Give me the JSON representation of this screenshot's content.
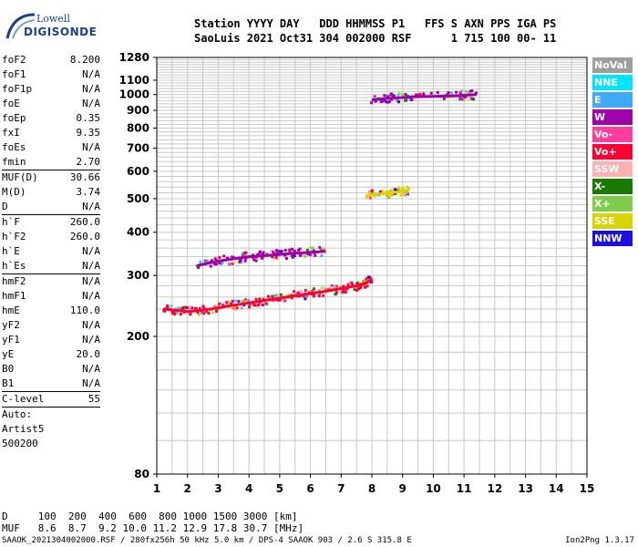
{
  "logo": {
    "line1": "Lowell",
    "line2": "DIGISONDE"
  },
  "header": {
    "line1": "Station YYYY DAY   DDD HHMMSS P1   FFS S AXN PPS IGA PS",
    "line2": "SaoLuis 2021 Oct31 304 002000 RSF      1 715 100 00- 11"
  },
  "params": [
    {
      "name": "foF2",
      "value": "8.200"
    },
    {
      "name": "foF1",
      "value": "N/A"
    },
    {
      "name": "foF1p",
      "value": "N/A"
    },
    {
      "name": "foE",
      "value": "N/A"
    },
    {
      "name": "foEp",
      "value": "0.35"
    },
    {
      "name": "fxI",
      "value": "9.35"
    },
    {
      "name": "foEs",
      "value": "N/A"
    },
    {
      "name": "fmin",
      "value": "2.70"
    },
    {
      "sep": true
    },
    {
      "name": "MUF(D)",
      "value": "30.66"
    },
    {
      "name": "M(D)",
      "value": "3.74"
    },
    {
      "name": "D",
      "value": "N/A"
    },
    {
      "sep": true
    },
    {
      "name": "h`F",
      "value": "260.0"
    },
    {
      "name": "h`F2",
      "value": "260.0"
    },
    {
      "name": "h`E",
      "value": "N/A"
    },
    {
      "name": "h`Es",
      "value": "N/A"
    },
    {
      "sep": true
    },
    {
      "name": "hmF2",
      "value": "N/A"
    },
    {
      "name": "hmF1",
      "value": "N/A"
    },
    {
      "name": "hmE",
      "value": "110.0"
    },
    {
      "name": "yF2",
      "value": "N/A"
    },
    {
      "name": "yF1",
      "value": "N/A"
    },
    {
      "name": "yE",
      "value": "20.0"
    },
    {
      "name": "B0",
      "value": "N/A"
    },
    {
      "name": "B1",
      "value": "N/A"
    },
    {
      "sep": true
    },
    {
      "name": "C-level",
      "value": "55"
    },
    {
      "sep": true
    },
    {
      "text": "Auto:"
    },
    {
      "text": "Artist5"
    },
    {
      "text": "500200"
    }
  ],
  "legend": [
    {
      "label": "NoVal",
      "color": "#9e9e9e"
    },
    {
      "label": "NNE",
      "color": "#00e5ff"
    },
    {
      "label": "E",
      "color": "#3fa9f5"
    },
    {
      "label": "W",
      "color": "#a000a8"
    },
    {
      "label": "Vo-",
      "color": "#ff3ca0"
    },
    {
      "label": "Vo+",
      "color": "#ff0033"
    },
    {
      "label": "SSW",
      "color": "#ffb0b0"
    },
    {
      "label": "X-",
      "color": "#1a7a00"
    },
    {
      "label": "X+",
      "color": "#7ecc4a"
    },
    {
      "label": "SSE",
      "color": "#d8d400"
    },
    {
      "label": "NNW",
      "color": "#1a10e0"
    }
  ],
  "footer": {
    "d_line": "D     100  200  400  600  800 1000 1500 3000 [km]",
    "muf_line": "MUF   8.6  8.7  9.2 10.0 11.2 12.9 17.8 30.7 [MHz]",
    "file_line": "SAAOK_2021304002000.RSF / 280fx256h 50 kHz 5.0 km / DPS-4 SAAOK 903 / 2.6 S 315.8 E",
    "version": "Ion2Png 1.3.17"
  },
  "chart_data": {
    "type": "scatter",
    "xlim": [
      1,
      15
    ],
    "xticks": [
      "1",
      "2",
      "3",
      "4",
      "5",
      "6",
      "7",
      "8",
      "9",
      "10",
      "11",
      "12",
      "13",
      "14",
      "15"
    ],
    "ylim": [
      80,
      1280
    ],
    "y_scale": "log",
    "yticks": [
      "80",
      "200",
      "300",
      "400",
      "500",
      "600",
      "700",
      "800",
      "900",
      "1000",
      "1100",
      "1280"
    ],
    "grid": true,
    "traces": [
      {
        "name": "F-layer base trace",
        "color": "#ff0033",
        "points": [
          [
            1.2,
            240
          ],
          [
            1.6,
            238
          ],
          [
            2.0,
            236
          ],
          [
            2.5,
            238
          ],
          [
            3.0,
            242
          ],
          [
            3.5,
            246
          ],
          [
            4.0,
            250
          ],
          [
            4.5,
            254
          ],
          [
            5.0,
            258
          ],
          [
            5.5,
            262
          ],
          [
            6.0,
            266
          ],
          [
            6.5,
            270
          ],
          [
            7.0,
            275
          ],
          [
            7.5,
            280
          ],
          [
            7.8,
            285
          ],
          [
            8.0,
            292
          ]
        ]
      },
      {
        "name": "second trace",
        "color": "#a000a8",
        "points": [
          [
            2.3,
            320
          ],
          [
            3.0,
            330
          ],
          [
            3.5,
            335
          ],
          [
            4.0,
            340
          ],
          [
            4.5,
            342
          ],
          [
            5.0,
            345
          ],
          [
            5.5,
            348
          ],
          [
            6.0,
            350
          ],
          [
            6.5,
            352
          ]
        ]
      },
      {
        "name": "high trace",
        "color": "#a000a8",
        "points": [
          [
            8.0,
            965
          ],
          [
            8.5,
            975
          ],
          [
            9.0,
            980
          ],
          [
            9.3,
            985
          ],
          [
            10.6,
            990
          ],
          [
            11.0,
            995
          ],
          [
            11.4,
            1000
          ]
        ]
      },
      {
        "name": "oblique trace",
        "color": "#d8d400",
        "points": [
          [
            7.8,
            510
          ],
          [
            8.2,
            515
          ],
          [
            8.6,
            520
          ],
          [
            9.0,
            525
          ],
          [
            9.2,
            530
          ]
        ]
      }
    ]
  }
}
